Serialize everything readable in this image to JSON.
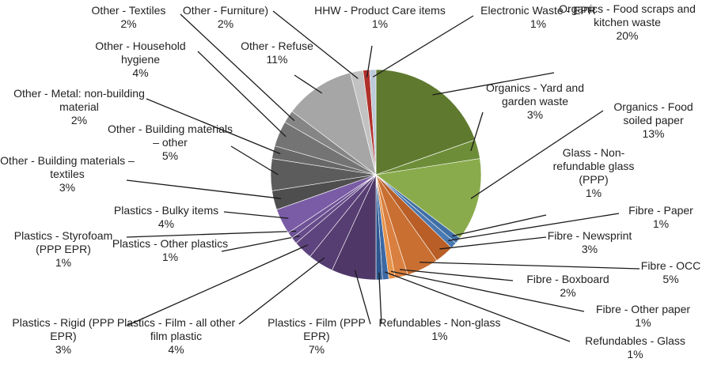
{
  "chart_data": {
    "type": "pie",
    "categories": [
      "Organics - Food scraps and kitchen waste",
      "Organics - Yard and garden waste",
      "Organics - Food soiled paper",
      "Glass - Non-refundable glass (PPP)",
      "Fibre - Paper",
      "Fibre - Newsprint",
      "Fibre - OCC",
      "Fibre - Boxboard",
      "Fibre - Other paper",
      "Refundables - Glass",
      "Refundables - Non-glass",
      "Plastics - Film (PPP EPR)",
      "Plastics - Film - all other film plastic",
      "Plastics - Rigid (PPP EPR)",
      "Plastics - Other plastics",
      "Plastics - Styrofoam (PPP EPR)",
      "Plastics - Bulky items",
      "Other - Building materials – textiles",
      "Other - Building materials – other",
      "Other - Metal: non-building material",
      "Other - Household hygiene",
      "Other - Textiles",
      "Other - Refuse",
      "Other - Furniture)",
      "HHW - Product Care items",
      "Electronic Waste - EPR"
    ],
    "values": [
      20,
      3,
      13,
      1,
      1,
      3,
      5,
      2,
      1,
      1,
      1,
      7,
      4,
      3,
      1,
      1,
      4,
      3,
      5,
      2,
      4,
      2,
      11,
      2,
      1,
      1
    ],
    "value_labels": [
      "20%",
      "3%",
      "13%",
      "1%",
      "1%",
      "3%",
      "5%",
      "2%",
      "1%",
      "1%",
      "1%",
      "7%",
      "4%",
      "3%",
      "1%",
      "1%",
      "4%",
      "3%",
      "5%",
      "2%",
      "4%",
      "2%",
      "11%",
      "2%",
      "1%",
      "1%"
    ],
    "colors": [
      "#5f7a2f",
      "#6e8d38",
      "#8aab4c",
      "#3f6fa6",
      "#4a78b0",
      "#b85e26",
      "#c96f31",
      "#d98040",
      "#e8944d",
      "#3c69a4",
      "#2c5790",
      "#4f3868",
      "#563d72",
      "#5e447e",
      "#664b8a",
      "#6e5296",
      "#7a5ca6",
      "#4e4e4e",
      "#5c5c5c",
      "#686868",
      "#747474",
      "#858585",
      "#a6a6a6",
      "#c2c2c2",
      "#b0302a",
      "#bccad9"
    ]
  }
}
